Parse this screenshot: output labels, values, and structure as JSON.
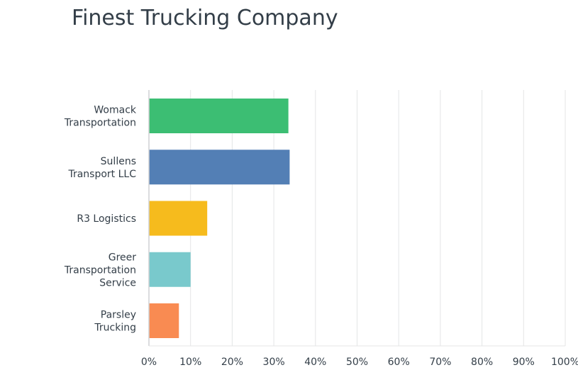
{
  "chart_data": {
    "type": "bar",
    "orientation": "horizontal",
    "title": "Finest Trucking Company",
    "categories": [
      [
        "Womack",
        "Transportation"
      ],
      [
        "Sullens",
        "Transport LLC"
      ],
      [
        "R3 Logistics"
      ],
      [
        "Greer",
        "Transportation",
        "Service"
      ],
      [
        "Parsley",
        "Trucking"
      ]
    ],
    "values": [
      33.5,
      33.8,
      14.0,
      10.0,
      7.2
    ],
    "colors": [
      "#3cbe73",
      "#537fb5",
      "#f6bb1d",
      "#79c9cc",
      "#f98b52"
    ],
    "xlim": [
      0,
      100
    ],
    "xticks": [
      "0%",
      "10%",
      "20%",
      "30%",
      "40%",
      "50%",
      "60%",
      "70%",
      "80%",
      "90%",
      "100%"
    ],
    "xlabel": "",
    "ylabel": "",
    "grid": true,
    "legend": "none"
  }
}
